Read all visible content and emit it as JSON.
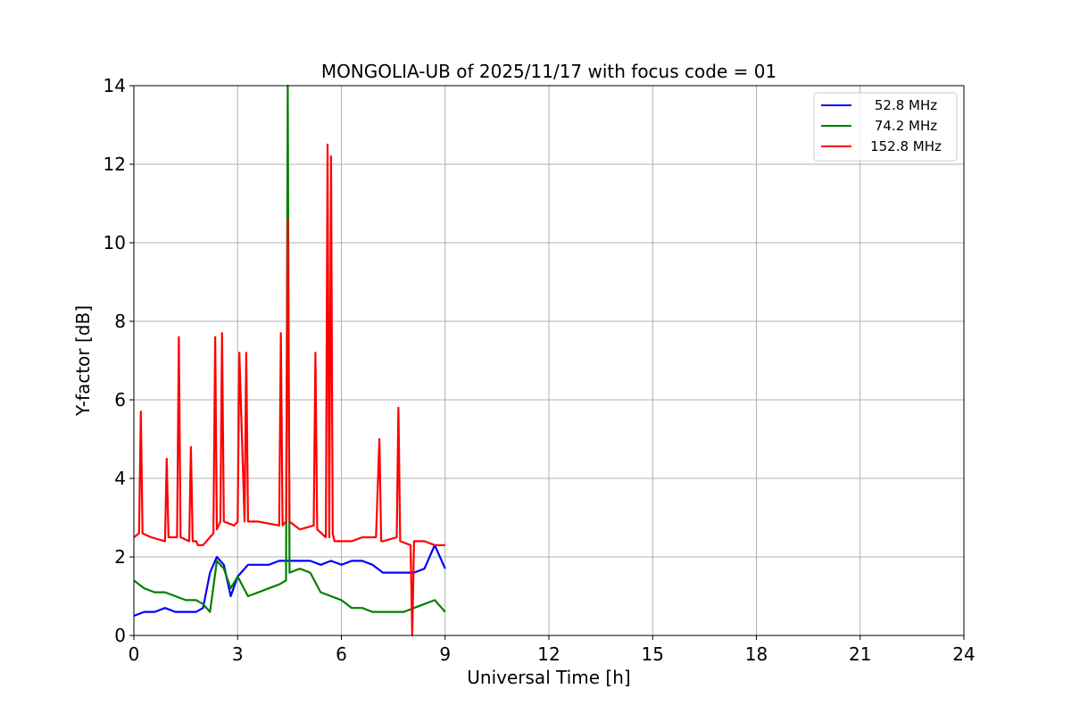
{
  "chart_data": {
    "type": "line",
    "title": "MONGOLIA-UB of 2025/11/17 with focus code = 01",
    "xlabel": "Universal Time [h]",
    "ylabel": "Y-factor [dB]",
    "xlim": [
      0,
      24
    ],
    "ylim": [
      0,
      14
    ],
    "xticks": [
      0,
      3,
      6,
      9,
      12,
      15,
      18,
      21,
      24
    ],
    "yticks": [
      0,
      2,
      4,
      6,
      8,
      10,
      12,
      14
    ],
    "grid": true,
    "legend_position": "top-right",
    "series": [
      {
        "name": "52.8 MHz",
        "color": "#0000ff",
        "x": [
          0,
          0.3,
          0.6,
          0.9,
          1.2,
          1.5,
          1.8,
          2.0,
          2.2,
          2.4,
          2.6,
          2.8,
          3.0,
          3.3,
          3.6,
          3.9,
          4.2,
          4.5,
          4.8,
          5.1,
          5.4,
          5.7,
          6.0,
          6.3,
          6.6,
          6.9,
          7.2,
          7.5,
          7.8,
          8.1,
          8.4,
          8.7,
          9.0
        ],
        "y": [
          0.5,
          0.6,
          0.6,
          0.7,
          0.6,
          0.6,
          0.6,
          0.7,
          1.6,
          2.0,
          1.8,
          1.0,
          1.5,
          1.8,
          1.8,
          1.8,
          1.9,
          1.9,
          1.9,
          1.9,
          1.8,
          1.9,
          1.8,
          1.9,
          1.9,
          1.8,
          1.6,
          1.6,
          1.6,
          1.6,
          1.7,
          2.3,
          1.7
        ]
      },
      {
        "name": "74.2 MHz",
        "color": "#008000",
        "x": [
          0,
          0.3,
          0.6,
          0.9,
          1.2,
          1.5,
          1.8,
          2.0,
          2.2,
          2.4,
          2.6,
          2.8,
          3.0,
          3.3,
          3.6,
          3.9,
          4.2,
          4.4,
          4.45,
          4.5,
          4.8,
          5.1,
          5.4,
          5.7,
          6.0,
          6.3,
          6.6,
          6.9,
          7.2,
          7.5,
          7.8,
          8.1,
          8.4,
          8.7,
          9.0
        ],
        "y": [
          1.4,
          1.2,
          1.1,
          1.1,
          1.0,
          0.9,
          0.9,
          0.8,
          0.6,
          1.9,
          1.7,
          1.2,
          1.5,
          1.0,
          1.1,
          1.2,
          1.3,
          1.4,
          14.0,
          1.6,
          1.7,
          1.6,
          1.1,
          1.0,
          0.9,
          0.7,
          0.7,
          0.6,
          0.6,
          0.6,
          0.6,
          0.7,
          0.8,
          0.9,
          0.6
        ]
      },
      {
        "name": "152.8 MHz",
        "color": "#ff0000",
        "x": [
          0,
          0.15,
          0.2,
          0.25,
          0.5,
          0.9,
          0.95,
          1.0,
          1.25,
          1.3,
          1.35,
          1.6,
          1.65,
          1.7,
          1.75,
          1.8,
          1.85,
          2.0,
          2.3,
          2.35,
          2.4,
          2.5,
          2.55,
          2.6,
          2.9,
          3.0,
          3.05,
          3.2,
          3.25,
          3.3,
          3.6,
          4.2,
          4.25,
          4.3,
          4.4,
          4.45,
          4.5,
          4.8,
          5.2,
          5.25,
          5.3,
          5.55,
          5.6,
          5.65,
          5.7,
          5.75,
          5.8,
          6.0,
          6.3,
          6.6,
          7.0,
          7.1,
          7.15,
          7.2,
          7.6,
          7.65,
          7.7,
          8.0,
          8.05,
          8.1,
          8.4,
          8.7,
          9.0
        ],
        "y": [
          2.5,
          2.6,
          5.7,
          2.6,
          2.5,
          2.4,
          4.5,
          2.5,
          2.5,
          7.6,
          2.5,
          2.4,
          4.8,
          2.4,
          2.4,
          2.4,
          2.3,
          2.3,
          2.6,
          7.6,
          2.7,
          2.9,
          7.7,
          2.9,
          2.8,
          2.9,
          7.2,
          2.9,
          7.2,
          2.9,
          2.9,
          2.8,
          7.7,
          2.8,
          2.9,
          10.6,
          2.9,
          2.7,
          2.8,
          7.2,
          2.7,
          2.5,
          12.5,
          2.5,
          12.2,
          2.6,
          2.4,
          2.4,
          2.4,
          2.5,
          2.5,
          5.0,
          2.4,
          2.4,
          2.5,
          5.8,
          2.4,
          2.3,
          0.0,
          2.4,
          2.4,
          2.3,
          2.3
        ]
      }
    ]
  }
}
